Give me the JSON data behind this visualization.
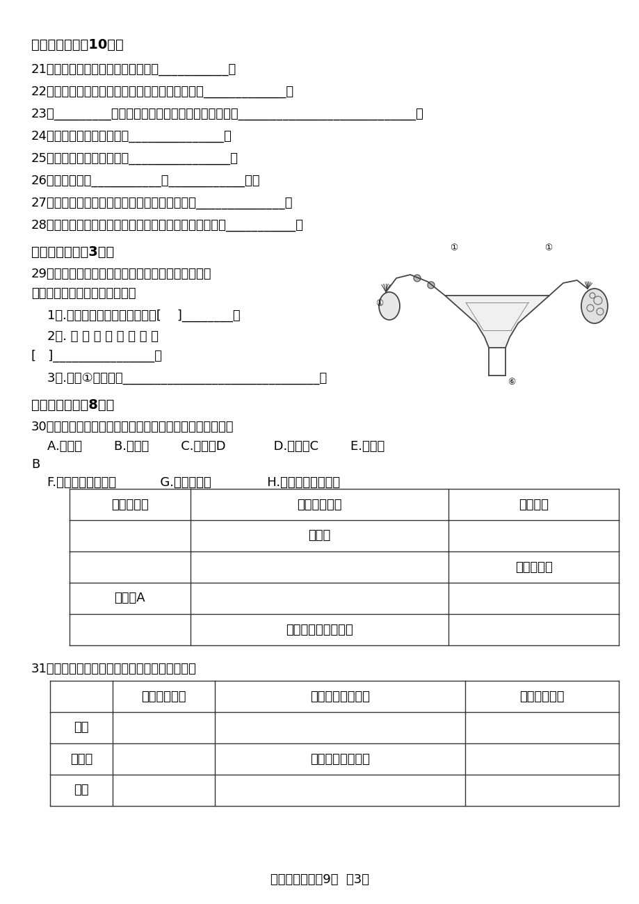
{
  "bg_color": "#ffffff",
  "text_color": "#000000",
  "footer_text": "初二生物试题共9页  第3页",
  "section2_title": "二、基础填空（10分）",
  "questions_basic": [
    "21、现代类人猿和人类的共同祖先是___________。",
    "22、人的一生中身体发育和智力发展的黄金时期是_____________。",
    "23、_________是男性的主要性器官，它的主要作用是____________________________。",
    "24、青春期最显著的特征是_______________。",
    "25、我国人口的增长趋势是________________。",
    "26、消化系统由___________和____________组成",
    "27、人的消化系统中，消化和吸收的主要器官是______________。",
    "28、能够消化糖类、脂肪和蛋白质三种有机物的消化液是___________。"
  ],
  "section3_title": "三、识图填空（3分）",
  "q29_text1": "29、下图是排卵、受精、受精卵发育、植入子宫内膜",
  "q29_text2": "的连续过程，试回答下列问题。",
  "q29_sub1": "    1）.精子和卵细胞结合的部位是[    ]________。",
  "q29_sub2": "    2）. 胚 胎 发 育 的 场 所 是",
  "q29_sub3": "[   ]________________。",
  "q29_sub4": "    3）.器官①的功能是_______________________________。",
  "section4_title": "四、填表比较（8分）",
  "q30_text": "30、比较各种维生素，把下列选项的字母代号填在下表中。",
  "q30_options1": "    A.坏血病        B.夜盲症        C.维生素D            D.维生素C        E.维生素",
  "q30_options2": "B",
  "q30_options3": "    F.动物肝脏、胡萝卜           G.粗粮、瘦肉              H.青菜、鱼肉、蛋黄",
  "table1_headers": [
    "维生素种类",
    "缺乏时的症状",
    "食物来源"
  ],
  "table1_rows": [
    [
      "",
      "脚气病",
      ""
    ],
    [
      "",
      "",
      "蔬菜、水果"
    ],
    [
      "维生素A",
      "",
      ""
    ],
    [
      "",
      "佝偻病、骨质疏松症",
      ""
    ]
  ],
  "q31_text": "31、比较淀粉、蛋白质、脂肪的消化，填写下表",
  "table2_headers": [
    "",
    "起始消化部位",
    "参与消化的消化液",
    "最终消化产物"
  ],
  "table2_rows": [
    [
      "淀粉",
      "",
      "",
      ""
    ],
    [
      "蛋白质",
      "",
      "胃液、肠液、胰液",
      ""
    ],
    [
      "脂肪",
      "",
      "",
      ""
    ]
  ]
}
